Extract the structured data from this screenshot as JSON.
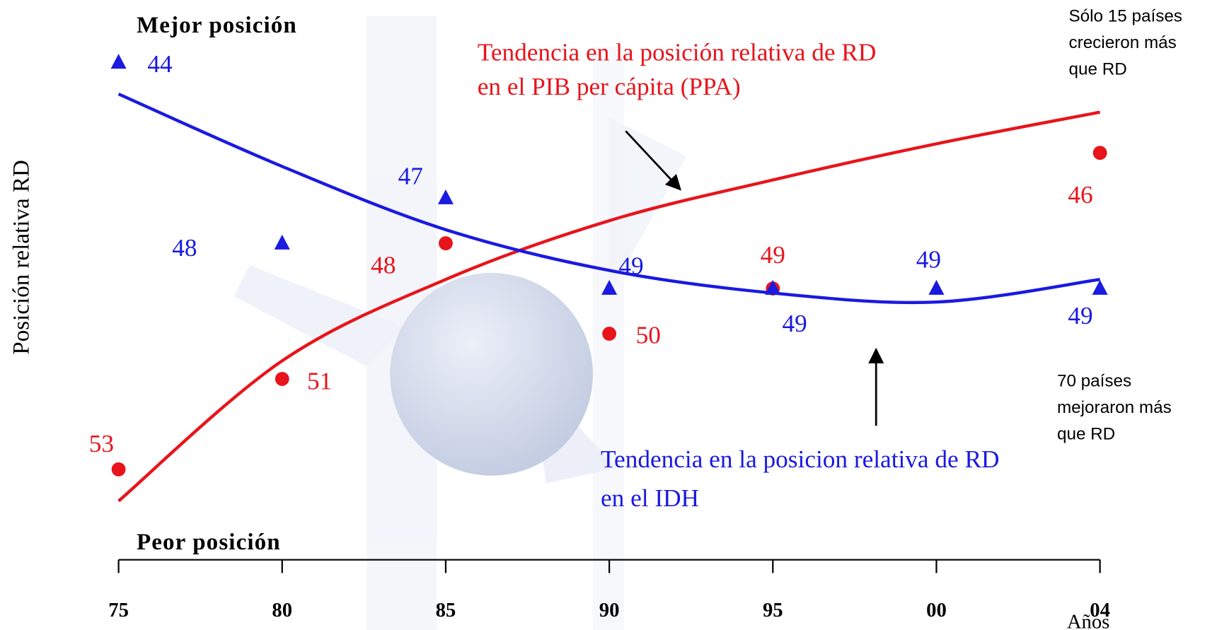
{
  "chart_data": {
    "type": "line",
    "y_axis_label": "Posición relativa RD",
    "top_label": "Mejor posición",
    "bottom_label": "Peor posición",
    "x_axis_label": "Años",
    "categories": [
      "75",
      "80",
      "85",
      "90",
      "95",
      "00",
      "04"
    ],
    "ylim": [
      44,
      53
    ],
    "y_reversed": true,
    "series": [
      {
        "name": "PIB per cápita (PPA)",
        "color": "#e8141b",
        "marker": "circle",
        "values": [
          53,
          51,
          48,
          50,
          49,
          null,
          46
        ],
        "trend": [
          53.7,
          50.6,
          48.8,
          47.5,
          46.6,
          45.8,
          45.1
        ]
      },
      {
        "name": "IDH",
        "color": "#1a1ae0",
        "marker": "triangle",
        "values": [
          44,
          48,
          47,
          49,
          49,
          49,
          49
        ],
        "trend": [
          44.7,
          46.3,
          47.7,
          48.6,
          49.1,
          49.3,
          48.8
        ]
      }
    ],
    "annotations": {
      "pib_trend": [
        "Tendencia en la posición relativa de RD",
        "en el PIB per cápita (PPA)"
      ],
      "idh_trend": [
        "Tendencia en la posicion relativa de RD",
        "en el IDH"
      ],
      "top_note": [
        "Sólo 15 países",
        "crecieron más",
        "que RD"
      ],
      "bottom_note": [
        "70 países",
        "mejoraron más",
        "que RD"
      ]
    }
  }
}
